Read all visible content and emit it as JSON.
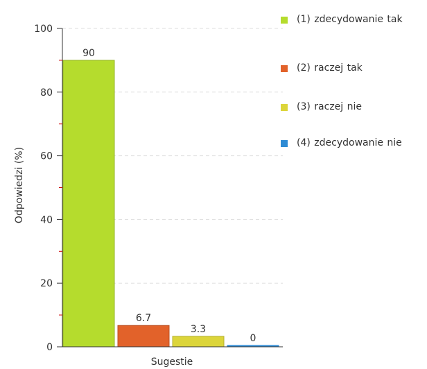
{
  "chart_data": {
    "type": "bar",
    "xlabel": "Sugestie",
    "ylabel": "Odpowiedzi (%)",
    "ylim": [
      0,
      100
    ],
    "yticks": [
      0,
      20,
      40,
      60,
      80,
      100
    ],
    "grid": true,
    "legend_position": "right",
    "series": [
      {
        "name": "(1) zdecydowanie tak",
        "value": 90,
        "label": "90",
        "color": "#b5dc2d"
      },
      {
        "name": "(2) raczej tak",
        "value": 6.7,
        "label": "6.7",
        "color": "#e2622a"
      },
      {
        "name": "(3) raczej nie",
        "value": 3.3,
        "label": "3.3",
        "color": "#dcd53a"
      },
      {
        "name": "(4) zdecydowanie nie",
        "value": 0,
        "label": "0",
        "color": "#2e8bd4"
      }
    ]
  }
}
